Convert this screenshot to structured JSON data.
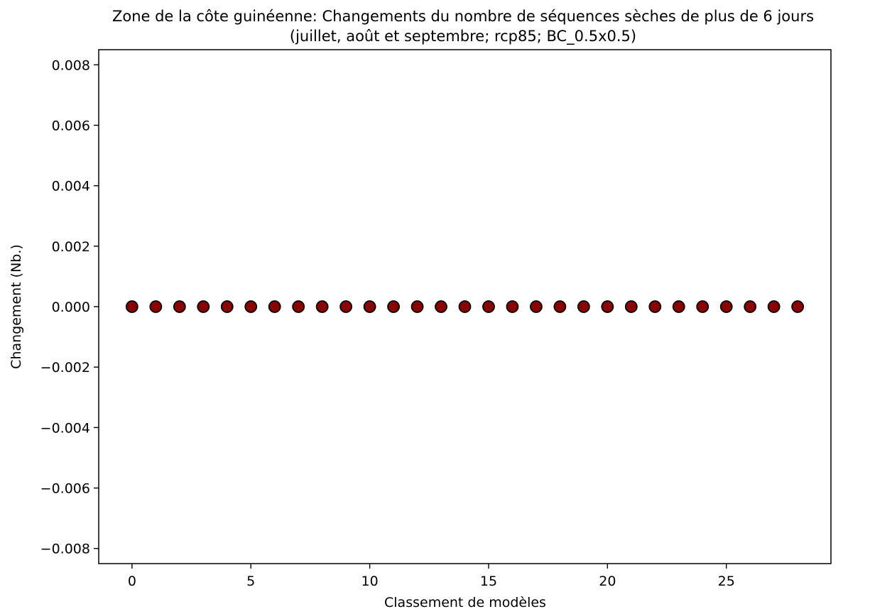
{
  "chart_data": {
    "type": "scatter",
    "title": "Zone de la côte guinéenne: Changements du nombre de séquences sèches de plus de 6 jours",
    "subtitle": "(juillet, août et septembre; rcp85; BC_0.5x0.5)",
    "xlabel": "Classement de modèles",
    "ylabel": "Changement (Nb.)",
    "xlim": [
      -1.4,
      29.4
    ],
    "ylim": [
      -0.0085,
      0.0085
    ],
    "x_ticks": [
      0,
      5,
      10,
      15,
      20,
      25
    ],
    "x_tick_labels": [
      "0",
      "5",
      "10",
      "15",
      "20",
      "25"
    ],
    "y_ticks": [
      0.008,
      0.006,
      0.004,
      0.002,
      0.0,
      -0.002,
      -0.004,
      -0.006,
      -0.008
    ],
    "y_tick_labels": [
      "0.008",
      "0.006",
      "0.004",
      "0.002",
      "0.000",
      "−0.002",
      "−0.004",
      "−0.006",
      "−0.008"
    ],
    "grid": false,
    "marker_color": "#8b0000",
    "marker_edge_color": "#000000",
    "x": [
      0,
      1,
      2,
      3,
      4,
      5,
      6,
      7,
      8,
      9,
      10,
      11,
      12,
      13,
      14,
      15,
      16,
      17,
      18,
      19,
      20,
      21,
      22,
      23,
      24,
      25,
      26,
      27,
      28
    ],
    "y": [
      0,
      0,
      0,
      0,
      0,
      0,
      0,
      0,
      0,
      0,
      0,
      0,
      0,
      0,
      0,
      0,
      0,
      0,
      0,
      0,
      0,
      0,
      0,
      0,
      0,
      0,
      0,
      0,
      0
    ]
  }
}
